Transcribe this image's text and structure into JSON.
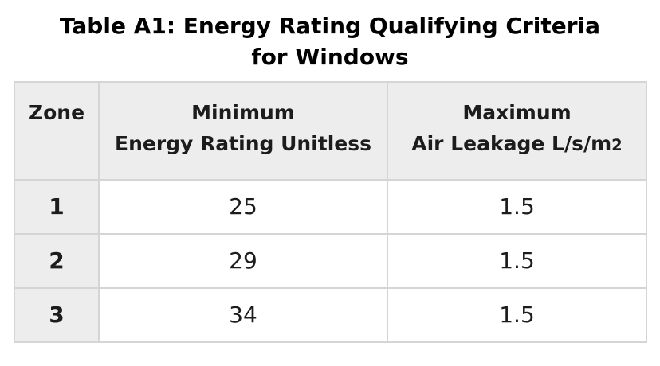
{
  "title": "Table A1: Energy Rating Qualifying Criteria for Windows",
  "table": {
    "headers": {
      "zone": "Zone",
      "min_energy_line1": "Minimum",
      "min_energy_line2": "Energy Rating Unitless",
      "max_leakage_line1": "Maximum",
      "max_leakage_line2_main": "Air Leakage L/s/m",
      "max_leakage_line2_sub": "2"
    },
    "rows": [
      {
        "zone": "1",
        "min_energy_rating": "25",
        "max_air_leakage": "1.5"
      },
      {
        "zone": "2",
        "min_energy_rating": "29",
        "max_air_leakage": "1.5"
      },
      {
        "zone": "3",
        "min_energy_rating": "34",
        "max_air_leakage": "1.5"
      }
    ]
  },
  "colors": {
    "title": "#000000",
    "text": "#1c1c1c",
    "header_bg": "#ededed",
    "border": "#d5d5d5",
    "cell_bg": "#ffffff"
  }
}
